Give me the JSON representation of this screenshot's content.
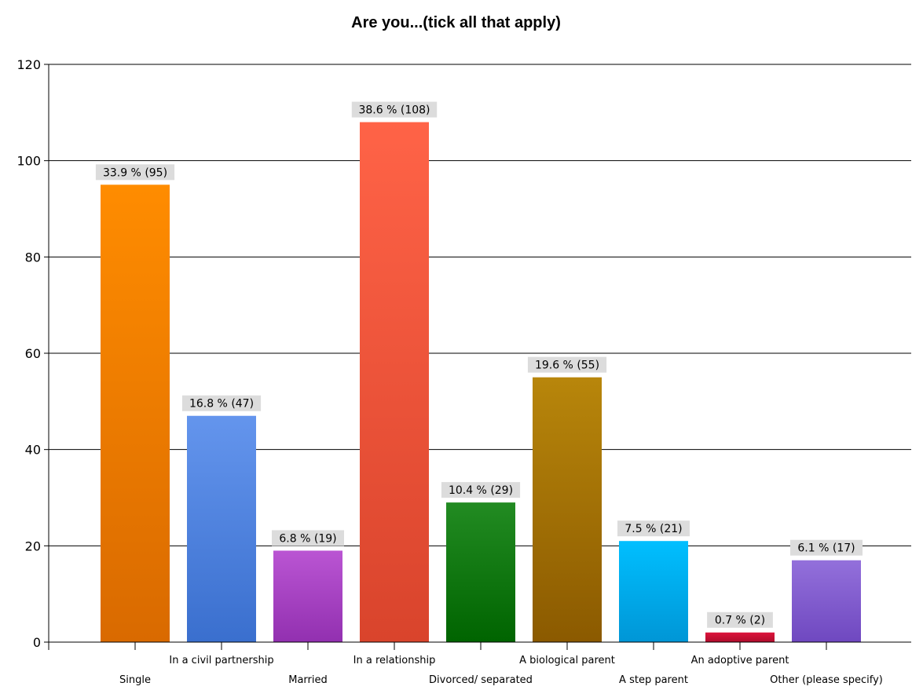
{
  "chart_data": {
    "type": "bar",
    "title": "Are you...(tick all that apply)",
    "xlabel": "",
    "ylabel": "",
    "ylim": [
      0,
      120
    ],
    "yticks": [
      0,
      20,
      40,
      60,
      80,
      100,
      120
    ],
    "grid": true,
    "legend": "none",
    "categories": [
      "Single",
      "In a civil partnership",
      "Married",
      "In a relationship",
      "Divorced/ separated",
      "A biological parent",
      "A step parent",
      "An adoptive parent",
      "Other (please specify)"
    ],
    "values": [
      95,
      47,
      19,
      108,
      29,
      55,
      21,
      2,
      17
    ],
    "data_labels": [
      "33.9 % (95)",
      "16.8 % (47)",
      "6.8 % (19)",
      "38.6 % (108)",
      "10.4 % (29)",
      "19.6 % (55)",
      "7.5 % (21)",
      "0.7 % (2)",
      "6.1 % (17)"
    ],
    "colors": [
      [
        "#ff8c00",
        "#d96a00"
      ],
      [
        "#6495ed",
        "#3a6fce"
      ],
      [
        "#ba55d3",
        "#9230b0"
      ],
      [
        "#ff6347",
        "#d9442c"
      ],
      [
        "#228b22",
        "#006400"
      ],
      [
        "#b8860b",
        "#8b5a00"
      ],
      [
        "#00bfff",
        "#0096d6"
      ],
      [
        "#dc143c",
        "#b00c2c"
      ],
      [
        "#9370db",
        "#6f48c0"
      ]
    ]
  }
}
